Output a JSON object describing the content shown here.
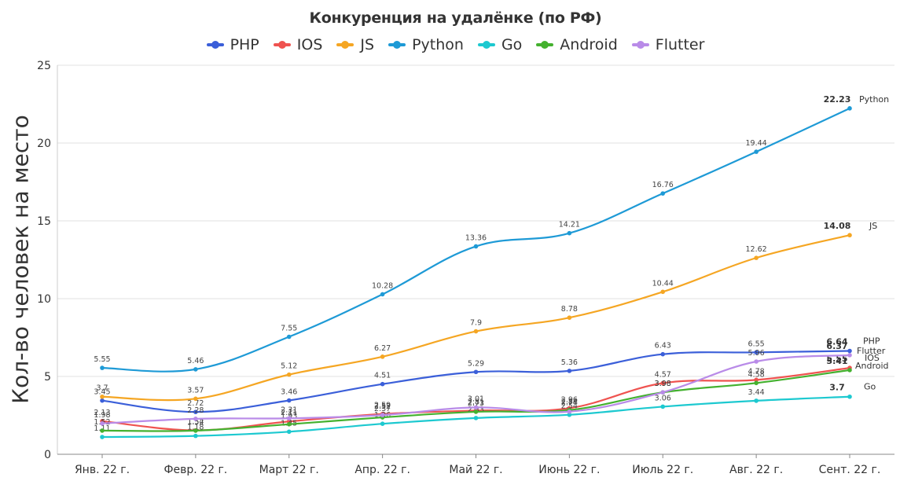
{
  "chart_data": {
    "type": "line",
    "title": "Конкуренция на удалёнке (по РФ)",
    "xlabel": "",
    "ylabel": "Кол-во человек на место",
    "ylim": [
      0,
      25
    ],
    "yticks": [
      0,
      5,
      10,
      15,
      20,
      25
    ],
    "grid": true,
    "legend_position": "top",
    "categories": [
      "Янв. 22 г.",
      "Февр. 22 г.",
      "Март 22 г.",
      "Апр. 22 г.",
      "Май 22 г.",
      "Июнь 22 г.",
      "Июль 22 г.",
      "Авг. 22 г.",
      "Сент. 22 г."
    ],
    "series": [
      {
        "name": "PHP",
        "color": "#3b5fd9",
        "values": [
          3.45,
          2.72,
          3.46,
          4.51,
          5.29,
          5.36,
          6.43,
          6.55,
          6.64
        ]
      },
      {
        "name": "IOS",
        "color": "#ef5350",
        "values": [
          2.13,
          1.54,
          2.11,
          2.59,
          2.81,
          2.96,
          4.57,
          4.78,
          5.55
        ]
      },
      {
        "name": "JS",
        "color": "#f5a623",
        "values": [
          3.7,
          3.57,
          5.12,
          6.27,
          7.9,
          8.78,
          10.44,
          12.62,
          14.08
        ]
      },
      {
        "name": "Python",
        "color": "#1e9ad6",
        "values": [
          5.55,
          5.46,
          7.55,
          10.28,
          13.36,
          14.21,
          16.76,
          19.44,
          22.23
        ]
      },
      {
        "name": "Go",
        "color": "#1dc9d0",
        "values": [
          1.11,
          1.18,
          1.45,
          1.96,
          2.33,
          2.54,
          3.06,
          3.44,
          3.7
        ]
      },
      {
        "name": "Android",
        "color": "#44b12f",
        "values": [
          1.52,
          1.52,
          1.93,
          2.37,
          2.73,
          2.84,
          3.98,
          4.58,
          5.41
        ]
      },
      {
        "name": "Flutter",
        "color": "#b98be8",
        "values": [
          1.98,
          2.28,
          2.31,
          2.52,
          3.01,
          2.74,
          3.98,
          5.96,
          6.37
        ]
      }
    ]
  }
}
